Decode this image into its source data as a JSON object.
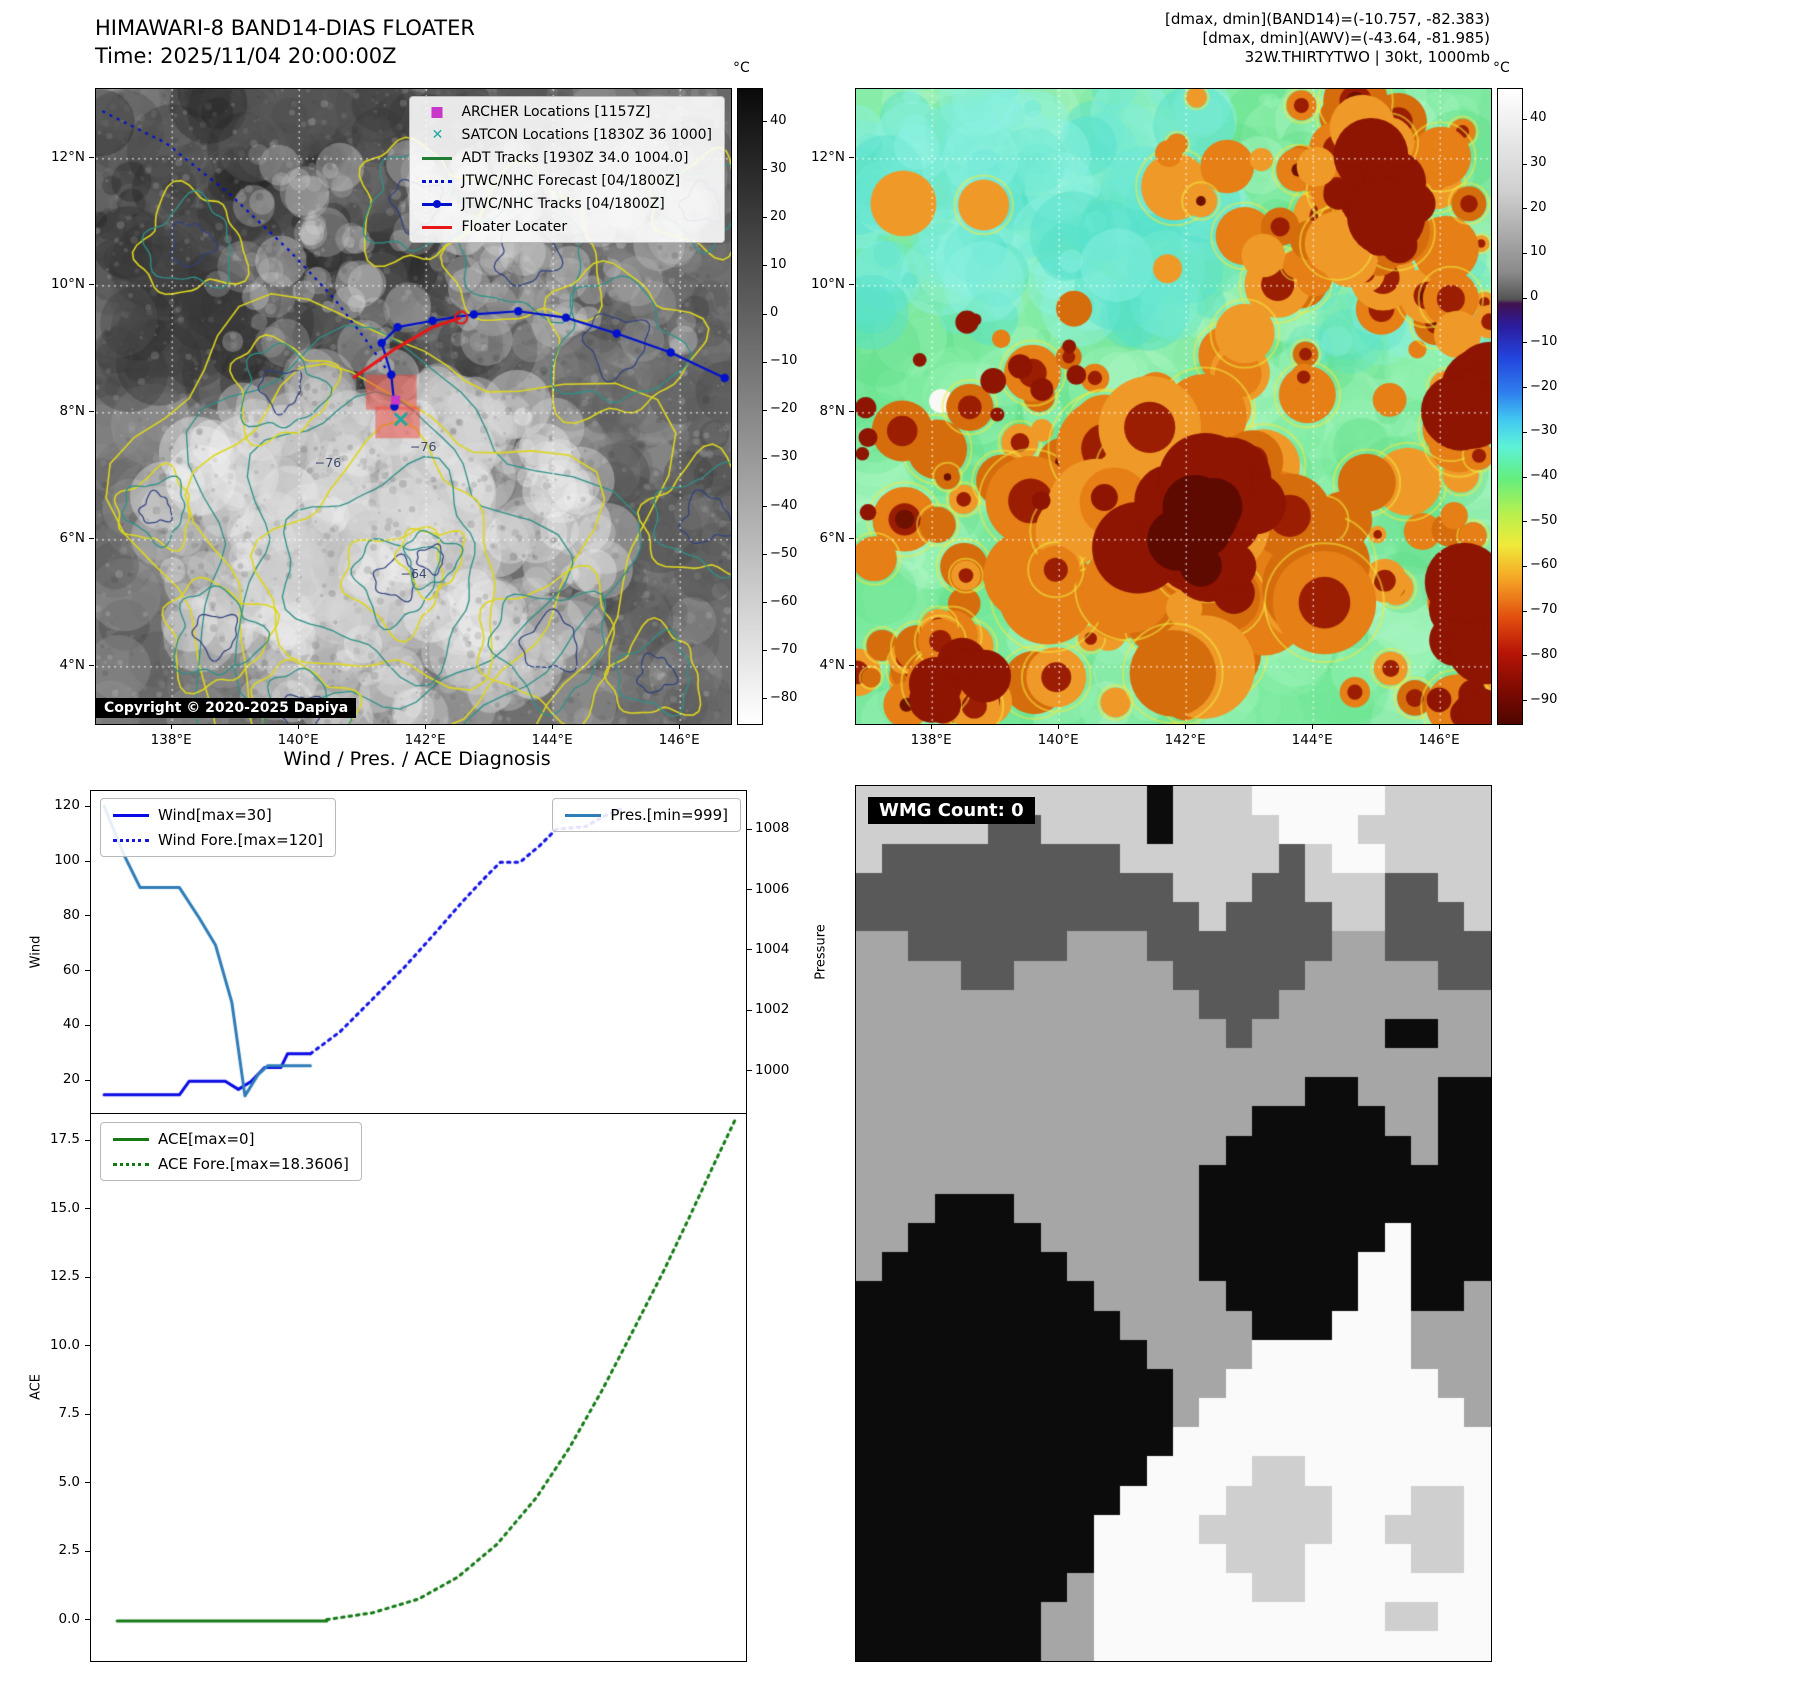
{
  "band14": {
    "title": "HIMAWARI-8 BAND14-DIAS FLOATER",
    "time": "Time: 2025/11/04 20:00:00Z",
    "copyright": "Copyright © 2020-2025 Dapiya",
    "legend": [
      {
        "label": "ARCHER Locations [1157Z]",
        "marker": "square",
        "color": "#c837c8"
      },
      {
        "label": "SATCON Locations [1830Z 36 1000]",
        "marker": "x",
        "color": "#1fa8a0"
      },
      {
        "label": "ADT Tracks [1930Z 34.0 1004.0]",
        "marker": "line",
        "color": "#1e7d32"
      },
      {
        "label": "JTWC/NHC Forecast [04/1800Z]",
        "marker": "dotted",
        "color": "#0011cc"
      },
      {
        "label": "JTWC/NHC Tracks [04/1800Z]",
        "marker": "line-dot",
        "color": "#0011cc"
      },
      {
        "label": "Floater Locater",
        "marker": "line",
        "color": "#e81717"
      }
    ],
    "map": {
      "x_tick_labels": [
        "138°E",
        "140°E",
        "142°E",
        "144°E",
        "146°E"
      ],
      "x_tick_lons": [
        138,
        140,
        142,
        144,
        146
      ],
      "y_tick_labels": [
        "12°N",
        "10°N",
        "8°N",
        "6°N",
        "4°N"
      ],
      "y_tick_lats": [
        12,
        10,
        8,
        6,
        4
      ]
    },
    "colorbar": {
      "unit": "°C",
      "tick_values": [
        40,
        30,
        20,
        10,
        0,
        -10,
        -20,
        -30,
        -40,
        -50,
        -60,
        -70,
        -80
      ],
      "tick_labels": [
        "40",
        "30",
        "20",
        "10",
        "0",
        "−10",
        "−20",
        "−30",
        "−40",
        "−50",
        "−60",
        "−70",
        "−80"
      ],
      "range": [
        47,
        -85
      ],
      "stops": [
        [
          47,
          "#0a0a0a"
        ],
        [
          -85,
          "#ffffff"
        ]
      ]
    },
    "contour_labels": [
      {
        "text": "−76",
        "lon": 140.45,
        "lat": 7.2
      },
      {
        "text": "−76",
        "lon": 141.95,
        "lat": 7.45
      },
      {
        "text": "−64",
        "lon": 141.8,
        "lat": 5.45
      }
    ],
    "tracks": {
      "forecast": {
        "points": [
          [
            136.9,
            12.75
          ],
          [
            137.9,
            12.25
          ],
          [
            138.9,
            11.45
          ],
          [
            139.85,
            10.55
          ],
          [
            140.55,
            9.8
          ],
          [
            141.05,
            9.15
          ],
          [
            141.4,
            8.65
          ]
        ]
      },
      "observed": {
        "points": [
          [
            146.7,
            8.55
          ],
          [
            145.85,
            8.95
          ],
          [
            145.0,
            9.25
          ],
          [
            144.2,
            9.5
          ],
          [
            143.45,
            9.6
          ],
          [
            142.75,
            9.55
          ],
          [
            142.1,
            9.45
          ],
          [
            141.55,
            9.35
          ],
          [
            141.3,
            9.1
          ],
          [
            141.45,
            8.6
          ],
          [
            141.5,
            8.1
          ]
        ]
      },
      "floater": {
        "points": [
          [
            140.85,
            8.55
          ],
          [
            141.5,
            9.0
          ],
          [
            142.1,
            9.35
          ],
          [
            142.55,
            9.5
          ]
        ]
      },
      "target_boxes": [
        {
          "lon": 141.05,
          "lat": 8.6,
          "w": 0.8,
          "h": 0.55
        },
        {
          "lon": 141.2,
          "lat": 8.1,
          "w": 0.7,
          "h": 0.5
        }
      ],
      "archer": {
        "lon": 141.52,
        "lat": 8.2
      },
      "satcon": {
        "lon": 141.6,
        "lat": 7.9
      }
    }
  },
  "awv": {
    "header_lines": [
      "[dmax, dmin](BAND14)=(-10.757, -82.383)",
      "[dmax, dmin](AWV)=(-43.64, -81.985)",
      "32W.THIRTYTWO | 30kt, 1000mb"
    ],
    "map": {
      "x_tick_labels": [
        "138°E",
        "140°E",
        "142°E",
        "144°E",
        "146°E"
      ],
      "x_tick_lons": [
        138,
        140,
        142,
        144,
        146
      ],
      "y_tick_labels": [
        "12°N",
        "10°N",
        "8°N",
        "6°N",
        "4°N"
      ],
      "y_tick_lats": [
        12,
        10,
        8,
        6,
        4
      ]
    },
    "colorbar": {
      "unit": "°C",
      "tick_values": [
        40,
        30,
        20,
        10,
        0,
        -10,
        -20,
        -30,
        -40,
        -50,
        -60,
        -70,
        -80,
        -90
      ],
      "tick_labels": [
        "40",
        "30",
        "20",
        "10",
        "0",
        "−10",
        "−20",
        "−30",
        "−40",
        "−50",
        "−60",
        "−70",
        "−80",
        "−90"
      ],
      "range": [
        47,
        -95
      ],
      "stops": [
        [
          47,
          "#ffffff"
        ],
        [
          24,
          "#cfcfcf"
        ],
        [
          6,
          "#8a8a8a"
        ],
        [
          0,
          "#555555"
        ],
        [
          -1,
          "#41114f"
        ],
        [
          -6,
          "#2b1c9e"
        ],
        [
          -13,
          "#2344dd"
        ],
        [
          -21,
          "#2f80ee"
        ],
        [
          -27,
          "#41c8f2"
        ],
        [
          -33,
          "#5df2d8"
        ],
        [
          -40,
          "#63ee7e"
        ],
        [
          -48,
          "#b8f04e"
        ],
        [
          -55,
          "#f0ea3a"
        ],
        [
          -63,
          "#f4a024"
        ],
        [
          -71,
          "#e2500f"
        ],
        [
          -79,
          "#b81507"
        ],
        [
          -87,
          "#800b02"
        ],
        [
          -95,
          "#4f0600"
        ]
      ]
    }
  },
  "chart_data": [
    {
      "type": "line",
      "title": "Wind / Pres. / ACE Diagnosis",
      "left_axis": {
        "label": "Wind",
        "tick_values": [
          20,
          40,
          60,
          80,
          100,
          120
        ],
        "tick_labels": [
          "20",
          "40",
          "60",
          "80",
          "100",
          "120"
        ],
        "range": [
          8,
          126
        ]
      },
      "right_axis": {
        "label": "Pressure",
        "tick_values": [
          1000,
          1002,
          1004,
          1006,
          1008
        ],
        "tick_labels": [
          "1000",
          "1002",
          "1004",
          "1006",
          "1008"
        ],
        "range": [
          998.6,
          1009.3
        ]
      },
      "series": [
        {
          "name": "Wind[max=30]",
          "axis": "left",
          "style": "solid",
          "color": "#0a0ae6",
          "width": 3,
          "points": [
            [
              0.02,
              15
            ],
            [
              0.135,
              15
            ],
            [
              0.15,
              20
            ],
            [
              0.205,
              20
            ],
            [
              0.225,
              17
            ],
            [
              0.245,
              20
            ],
            [
              0.265,
              25
            ],
            [
              0.29,
              25
            ],
            [
              0.3,
              30
            ],
            [
              0.335,
              30
            ]
          ]
        },
        {
          "name": "Wind Fore.[max=120]",
          "axis": "left",
          "style": "dotted",
          "color": "#1414e6",
          "width": 3,
          "points": [
            [
              0.335,
              30
            ],
            [
              0.38,
              38
            ],
            [
              0.43,
              50
            ],
            [
              0.48,
              62
            ],
            [
              0.525,
              74
            ],
            [
              0.565,
              85
            ],
            [
              0.6,
              94
            ],
            [
              0.625,
              100
            ],
            [
              0.655,
              100
            ],
            [
              0.685,
              106
            ],
            [
              0.71,
              112
            ],
            [
              0.755,
              113
            ],
            [
              0.785,
              117
            ],
            [
              0.815,
              120
            ]
          ]
        },
        {
          "name": "Pres.[min=999]",
          "axis": "right",
          "style": "solid",
          "color": "#2e7cb8",
          "width": 3,
          "points": [
            [
              0.02,
              1008.8
            ],
            [
              0.05,
              1007.2
            ],
            [
              0.075,
              1006.1
            ],
            [
              0.135,
              1006.1
            ],
            [
              0.165,
              1005.1
            ],
            [
              0.19,
              1004.2
            ],
            [
              0.215,
              1002.3
            ],
            [
              0.235,
              999.2
            ],
            [
              0.255,
              999.9
            ],
            [
              0.27,
              1000.2
            ],
            [
              0.335,
              1000.2
            ]
          ]
        }
      ],
      "legend_left": [
        "Wind[max=30]",
        "Wind Fore.[max=120]"
      ],
      "legend_right": [
        "Pres.[min=999]"
      ]
    },
    {
      "type": "line",
      "left_axis": {
        "label": "ACE",
        "tick_values": [
          0,
          2.5,
          5,
          7.5,
          10,
          12.5,
          15,
          17.5
        ],
        "tick_labels": [
          "0.0",
          "2.5",
          "5.0",
          "7.5",
          "10.0",
          "12.5",
          "15.0",
          "17.5"
        ],
        "range": [
          -1.46,
          18.49
        ]
      },
      "series": [
        {
          "name": "ACE[max=0]",
          "axis": "left",
          "style": "solid",
          "color": "#157a15",
          "width": 3,
          "points": [
            [
              0.04,
              0
            ],
            [
              0.36,
              0
            ]
          ]
        },
        {
          "name": "ACE Fore.[max=18.3606]",
          "axis": "left",
          "style": "dotted",
          "color": "#157a15",
          "width": 3,
          "points": [
            [
              0.36,
              0.05
            ],
            [
              0.43,
              0.3
            ],
            [
              0.5,
              0.8
            ],
            [
              0.56,
              1.6
            ],
            [
              0.62,
              2.8
            ],
            [
              0.68,
              4.5
            ],
            [
              0.73,
              6.3
            ],
            [
              0.78,
              8.4
            ],
            [
              0.83,
              10.7
            ],
            [
              0.875,
              12.8
            ],
            [
              0.915,
              14.8
            ],
            [
              0.95,
              16.6
            ],
            [
              0.985,
              18.36
            ]
          ]
        }
      ],
      "legend_left": [
        "ACE[max=0]",
        "ACE Fore.[max=18.3606]"
      ]
    }
  ],
  "wmg": {
    "count_label": "WMG Count: 0",
    "palette": {
      "W": "#fafafa",
      "L": "#cfcfcf",
      "M": "#a6a6a6",
      "D": "#595959",
      "B": "#0c0c0c"
    },
    "rows": [
      "LLLLLLLLLLLBLLLWWWWWLLLL",
      "LLLLLDDLLLLBLLLLWWWLLLLL",
      "LDDDDDDDDDLLLLLLDLWWLLLL",
      "DDDDDDDDDDDDLLLDDLLLDDLL",
      "DDDDDDDDDDDDDLDDDDLLDDDL",
      "MMDDDDDDMMMDDDDDDDMMDDDD",
      "MMMMDDMMMMMMDDDDDMMMMMDD",
      "MMMMMMMMMMMMMDDDMMMMMMMM",
      "MMMMMMMMMMMMMMDMMMMMBBMM",
      "MMMMMMMMMMMMMMMMMMMMMMMM",
      "MMMMMMMMMMMMMMMMMBBMMMBB",
      "MMMMMMMMMMMMMMMBBBBBMMBB",
      "MMMMMMMMMMMMMMBBBBBBBMBB",
      "MMMMMMMMMMMMMBBBBBBBBBBB",
      "MMMBBBMMMMMMMBBBBBBBBBBB",
      "MMBBBBBMMMMMMBBBBBBBWBBB",
      "MBBBBBBBMMMMMBBBBBBWWBBB",
      "BBBBBBBBBMMMMMBBBBBWWBBM",
      "BBBBBBBBBBMMMMMBBBWWWMMM",
      "BBBBBBBBBBBMMMMWWWWWWMMM",
      "BBBBBBBBBBBBMMWWWWWWWWMM",
      "BBBBBBBBBBBBMWWWWWWWWWWM",
      "BBBBBBBBBBBBWWWWWWWWWWWW",
      "BBBBBBBBBBBWWWWLLWWWWWWW",
      "BBBBBBBBBBWWWWLLLLWWWLLW",
      "BBBBBBBBBWWWWLLLLLWWLLLW",
      "BBBBBBBBBWWWWWLLLWWWWLLW",
      "BBBBBBBBMWWWWWWLLWWWWWWW",
      "BBBBBBBMMWWWWWWWWWWWLLWW",
      "BBBBBBBMMWWWWWWWWWWWWWWW"
    ]
  }
}
